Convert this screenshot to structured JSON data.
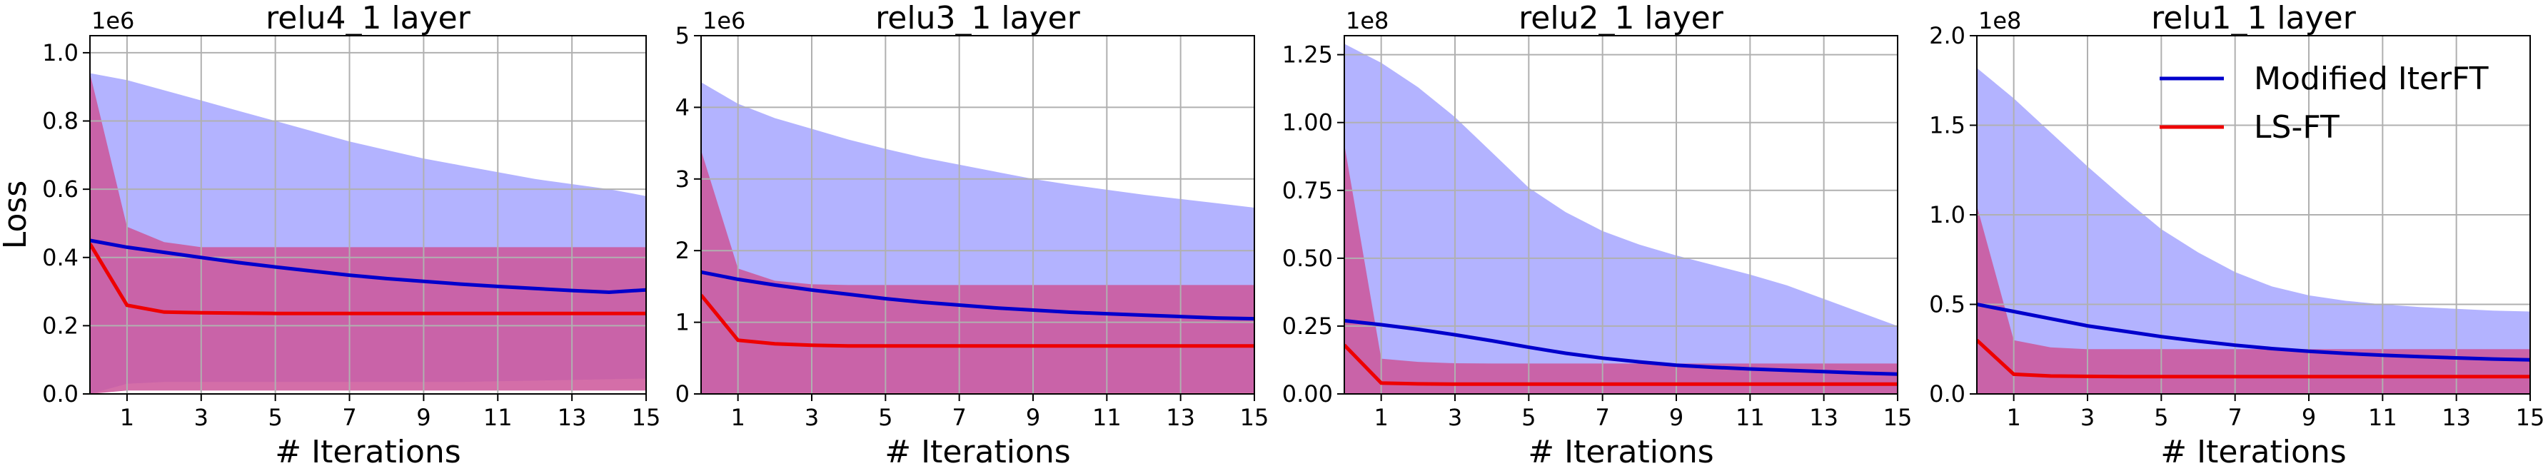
{
  "chart_data": [
    {
      "type": "line",
      "title": "relu4_1 layer",
      "xlabel": "# Iterations",
      "ylabel": "Loss",
      "scale_label": "1e6",
      "xlim": [
        0,
        15
      ],
      "ylim": [
        0,
        1.05
      ],
      "x_ticks": [
        1,
        3,
        5,
        7,
        9,
        11,
        13,
        15
      ],
      "y_ticks": [
        0.0,
        0.2,
        0.4,
        0.6,
        0.8,
        1.0
      ],
      "y_tick_labels": [
        "0.0",
        "0.2",
        "0.4",
        "0.6",
        "0.8",
        "1.0"
      ],
      "grid": true,
      "x": [
        0,
        1,
        2,
        3,
        4,
        5,
        6,
        7,
        8,
        9,
        10,
        11,
        12,
        13,
        14,
        15
      ],
      "series": [
        {
          "name": "Modified IterFT",
          "color": "#0000cc",
          "band_color": "#b3b3ff",
          "values": [
            0.45,
            0.43,
            0.415,
            0.4,
            0.385,
            0.372,
            0.36,
            0.348,
            0.338,
            0.33,
            0.322,
            0.315,
            0.309,
            0.303,
            0.298,
            0.305
          ],
          "upper": [
            0.94,
            0.92,
            0.89,
            0.86,
            0.83,
            0.8,
            0.77,
            0.74,
            0.715,
            0.69,
            0.67,
            0.65,
            0.63,
            0.615,
            0.6,
            0.58
          ],
          "lower": [
            0.0,
            0.03,
            0.035,
            0.035,
            0.035,
            0.035,
            0.035,
            0.035,
            0.035,
            0.035,
            0.035,
            0.037,
            0.039,
            0.041,
            0.043,
            0.045
          ]
        },
        {
          "name": "LS-FT",
          "color": "#ee0000",
          "band_color": "#cc5599",
          "values": [
            0.44,
            0.26,
            0.24,
            0.238,
            0.237,
            0.236,
            0.236,
            0.236,
            0.236,
            0.236,
            0.236,
            0.236,
            0.236,
            0.236,
            0.236,
            0.236
          ],
          "upper": [
            0.94,
            0.49,
            0.445,
            0.43,
            0.43,
            0.43,
            0.43,
            0.43,
            0.43,
            0.43,
            0.43,
            0.43,
            0.43,
            0.43,
            0.43,
            0.43
          ],
          "lower": [
            0.0,
            0.01,
            0.01,
            0.01,
            0.01,
            0.01,
            0.01,
            0.01,
            0.01,
            0.01,
            0.01,
            0.01,
            0.01,
            0.01,
            0.01,
            0.01
          ]
        }
      ]
    },
    {
      "type": "line",
      "title": "relu3_1 layer",
      "xlabel": "# Iterations",
      "ylabel": "",
      "scale_label": "1e6",
      "xlim": [
        0,
        15
      ],
      "ylim": [
        0,
        5
      ],
      "x_ticks": [
        1,
        3,
        5,
        7,
        9,
        11,
        13,
        15
      ],
      "y_ticks": [
        0,
        1,
        2,
        3,
        4,
        5
      ],
      "y_tick_labels": [
        "0",
        "1",
        "2",
        "3",
        "4",
        "5"
      ],
      "grid": true,
      "x": [
        0,
        1,
        2,
        3,
        4,
        5,
        6,
        7,
        8,
        9,
        10,
        11,
        12,
        13,
        14,
        15
      ],
      "series": [
        {
          "name": "Modified IterFT",
          "color": "#0000cc",
          "band_color": "#b3b3ff",
          "values": [
            1.7,
            1.6,
            1.52,
            1.45,
            1.39,
            1.33,
            1.28,
            1.24,
            1.2,
            1.17,
            1.14,
            1.12,
            1.1,
            1.08,
            1.06,
            1.05
          ],
          "upper": [
            4.35,
            4.05,
            3.85,
            3.7,
            3.55,
            3.42,
            3.3,
            3.2,
            3.1,
            3.0,
            2.92,
            2.85,
            2.78,
            2.72,
            2.66,
            2.6
          ],
          "lower": [
            0.0,
            0.02,
            0.02,
            0.02,
            0.02,
            0.02,
            0.02,
            0.02,
            0.02,
            0.02,
            0.02,
            0.02,
            0.02,
            0.02,
            0.02,
            0.02
          ]
        },
        {
          "name": "LS-FT",
          "color": "#ee0000",
          "band_color": "#cc5599",
          "values": [
            1.38,
            0.75,
            0.7,
            0.68,
            0.67,
            0.67,
            0.67,
            0.67,
            0.67,
            0.67,
            0.67,
            0.67,
            0.67,
            0.67,
            0.67,
            0.67
          ],
          "upper": [
            3.4,
            1.75,
            1.58,
            1.53,
            1.52,
            1.52,
            1.52,
            1.52,
            1.52,
            1.52,
            1.52,
            1.52,
            1.52,
            1.52,
            1.52,
            1.52
          ],
          "lower": [
            0.0,
            0.0,
            0.0,
            0.0,
            0.0,
            0.0,
            0.0,
            0.0,
            0.0,
            0.0,
            0.0,
            0.0,
            0.0,
            0.0,
            0.0,
            0.0
          ]
        }
      ]
    },
    {
      "type": "line",
      "title": "relu2_1 layer",
      "xlabel": "# Iterations",
      "ylabel": "",
      "scale_label": "1e8",
      "xlim": [
        0,
        15
      ],
      "ylim": [
        0,
        1.32
      ],
      "x_ticks": [
        1,
        3,
        5,
        7,
        9,
        11,
        13,
        15
      ],
      "y_ticks": [
        0.0,
        0.25,
        0.5,
        0.75,
        1.0,
        1.25
      ],
      "y_tick_labels": [
        "0.00",
        "0.25",
        "0.50",
        "0.75",
        "1.00",
        "1.25"
      ],
      "grid": true,
      "x": [
        0,
        1,
        2,
        3,
        4,
        5,
        6,
        7,
        8,
        9,
        10,
        11,
        12,
        13,
        14,
        15
      ],
      "series": [
        {
          "name": "Modified IterFT",
          "color": "#0000cc",
          "band_color": "#b3b3ff",
          "values": [
            0.27,
            0.255,
            0.238,
            0.218,
            0.196,
            0.172,
            0.15,
            0.132,
            0.118,
            0.106,
            0.098,
            0.092,
            0.087,
            0.082,
            0.077,
            0.073
          ],
          "upper": [
            1.29,
            1.22,
            1.13,
            1.02,
            0.89,
            0.76,
            0.67,
            0.6,
            0.55,
            0.51,
            0.475,
            0.44,
            0.4,
            0.35,
            0.3,
            0.25
          ],
          "lower": [
            0.0,
            0.0,
            0.0,
            0.0,
            0.0,
            0.0,
            0.0,
            0.0,
            0.0,
            0.0,
            0.0,
            0.0,
            0.0,
            0.0,
            0.0,
            0.0
          ]
        },
        {
          "name": "LS-FT",
          "color": "#ee0000",
          "band_color": "#cc5599",
          "values": [
            0.18,
            0.04,
            0.037,
            0.036,
            0.036,
            0.036,
            0.036,
            0.036,
            0.036,
            0.036,
            0.036,
            0.036,
            0.036,
            0.036,
            0.036,
            0.036
          ],
          "upper": [
            0.92,
            0.13,
            0.118,
            0.113,
            0.112,
            0.112,
            0.112,
            0.112,
            0.112,
            0.112,
            0.112,
            0.112,
            0.112,
            0.112,
            0.112,
            0.112
          ],
          "lower": [
            0.0,
            0.0,
            0.0,
            0.0,
            0.0,
            0.0,
            0.0,
            0.0,
            0.0,
            0.0,
            0.0,
            0.0,
            0.0,
            0.0,
            0.0,
            0.0
          ]
        }
      ]
    },
    {
      "type": "line",
      "title": "relu1_1 layer",
      "xlabel": "# Iterations",
      "ylabel": "",
      "scale_label": "1e8",
      "xlim": [
        0,
        15
      ],
      "ylim": [
        0,
        2.0
      ],
      "x_ticks": [
        1,
        3,
        5,
        7,
        9,
        11,
        13,
        15
      ],
      "y_ticks": [
        0.0,
        0.5,
        1.0,
        1.5,
        2.0
      ],
      "y_tick_labels": [
        "0.0",
        "0.5",
        "1.0",
        "1.5",
        "2.0"
      ],
      "grid": true,
      "legend": "top-right",
      "x": [
        0,
        1,
        2,
        3,
        4,
        5,
        6,
        7,
        8,
        9,
        10,
        11,
        12,
        13,
        14,
        15
      ],
      "series": [
        {
          "name": "Modified IterFT",
          "color": "#0000cc",
          "band_color": "#b3b3ff",
          "values": [
            0.5,
            0.46,
            0.42,
            0.38,
            0.35,
            0.32,
            0.295,
            0.272,
            0.253,
            0.238,
            0.226,
            0.216,
            0.208,
            0.201,
            0.195,
            0.19
          ],
          "upper": [
            1.82,
            1.65,
            1.46,
            1.27,
            1.09,
            0.92,
            0.79,
            0.68,
            0.6,
            0.55,
            0.52,
            0.5,
            0.485,
            0.475,
            0.465,
            0.46
          ],
          "lower": [
            0.0,
            0.0,
            0.0,
            0.0,
            0.0,
            0.0,
            0.0,
            0.0,
            0.0,
            0.0,
            0.0,
            0.0,
            0.0,
            0.0,
            0.0,
            0.0
          ]
        },
        {
          "name": "LS-FT",
          "color": "#ee0000",
          "band_color": "#cc5599",
          "values": [
            0.3,
            0.11,
            0.1,
            0.098,
            0.097,
            0.097,
            0.097,
            0.097,
            0.097,
            0.097,
            0.097,
            0.097,
            0.097,
            0.097,
            0.097,
            0.097
          ],
          "upper": [
            1.05,
            0.3,
            0.26,
            0.25,
            0.25,
            0.25,
            0.25,
            0.25,
            0.25,
            0.25,
            0.25,
            0.25,
            0.25,
            0.25,
            0.25,
            0.25
          ],
          "lower": [
            0.0,
            0.0,
            0.0,
            0.0,
            0.0,
            0.0,
            0.0,
            0.0,
            0.0,
            0.0,
            0.0,
            0.0,
            0.0,
            0.0,
            0.0,
            0.0
          ]
        }
      ]
    }
  ]
}
